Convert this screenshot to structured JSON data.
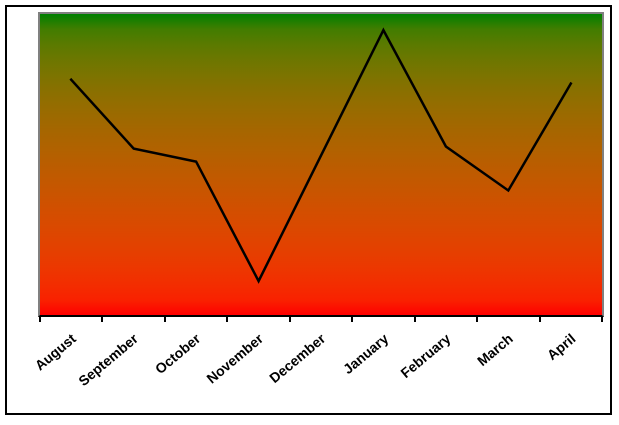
{
  "window": {
    "background_color": "#FFFFFF",
    "frame_border_color": "#000000"
  },
  "chart_data": {
    "type": "line",
    "title": "",
    "xlabel": "",
    "ylabel": "",
    "categories": [
      "August",
      "September",
      "October",
      "November",
      "December",
      "January",
      "February",
      "March",
      "April"
    ],
    "values": [
      78.5,
      55.6,
      51.3,
      11.6,
      53.3,
      95.0,
      56.3,
      41.7,
      77.2
    ],
    "ylim": [
      0,
      100
    ],
    "y_axis_visible": false,
    "grid": false,
    "legend": "none",
    "x_axis": {
      "boundary_tick_count": 10,
      "label_rotation_deg": -40
    },
    "styles": {
      "line_color": "#000000",
      "line_width": 2.5,
      "plot_gradient_top": "#008000",
      "plot_gradient_bottom": "#FF0000",
      "gradient_interpolation": "gamma-2.2",
      "plot_border_color": "#808080",
      "axis_color": "#000000",
      "tick_color": "#000000",
      "label_color": "#000000"
    }
  }
}
